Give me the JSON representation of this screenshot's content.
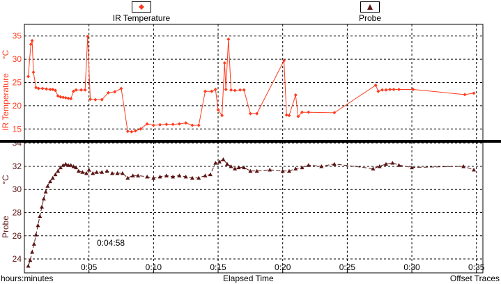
{
  "legend": [
    {
      "label": "IR Temperature",
      "color": "#ff3b1f",
      "marker": "diamond"
    },
    {
      "label": "Probe",
      "color": "#5a1414",
      "marker": "triangle"
    }
  ],
  "footer": {
    "left_label": "hours:minutes",
    "center_label": "Elapsed Time",
    "right_label": "Offset Traces"
  },
  "cursor_label": "0:04:58",
  "chart_data": [
    {
      "type": "line",
      "title": "",
      "xlabel": "Elapsed Time",
      "x_tick_labels": [
        "0:05",
        "0:10",
        "0:15",
        "0:20",
        "0:25",
        "0:30",
        "0:35"
      ],
      "x_ticks_minutes": [
        5,
        10,
        15,
        20,
        25,
        30,
        35
      ],
      "xlim": [
        0,
        35.5
      ],
      "ylabel": "IR Temperature",
      "yunit": "°C",
      "ylim": [
        12.5,
        37.5
      ],
      "y_ticks": [
        15,
        20,
        25,
        30,
        35
      ],
      "grid": true,
      "legend_position": "top",
      "series": [
        {
          "name": "IR Temperature",
          "color": "#ff3b1f",
          "marker": "diamond",
          "x": [
            0.3,
            0.5,
            0.6,
            0.7,
            0.9,
            1.1,
            1.4,
            1.7,
            2.0,
            2.2,
            2.4,
            2.6,
            2.8,
            3.0,
            3.2,
            3.4,
            3.6,
            3.8,
            4.0,
            4.4,
            4.7,
            4.9,
            5.1,
            5.5,
            6.0,
            6.5,
            7.0,
            7.5,
            8.0,
            8.3,
            8.6,
            9.0,
            9.5,
            10.0,
            10.5,
            11.0,
            11.5,
            12.0,
            12.5,
            13.0,
            13.5,
            14.0,
            14.5,
            14.8,
            15.0,
            15.3,
            15.5,
            15.6,
            15.8,
            16.0,
            16.3,
            16.7,
            17.0,
            17.5,
            18.0,
            20.1,
            20.3,
            20.5,
            21.0,
            21.2,
            21.5,
            22.0,
            24.0,
            27.2,
            27.4,
            27.7,
            28.0,
            28.3,
            28.6,
            29.0,
            30.1,
            34.1,
            34.8
          ],
          "y": [
            26.3,
            33.2,
            34.0,
            27.2,
            23.9,
            23.7,
            23.7,
            23.6,
            23.5,
            23.5,
            23.3,
            22.1,
            21.9,
            21.8,
            21.7,
            21.6,
            21.5,
            23.1,
            23.4,
            23.4,
            23.4,
            34.9,
            21.4,
            21.3,
            21.3,
            22.8,
            23.0,
            23.7,
            14.5,
            14.4,
            14.6,
            15.0,
            16.1,
            15.8,
            15.9,
            16.0,
            16.0,
            16.1,
            16.3,
            15.8,
            15.8,
            23.1,
            23.1,
            23.5,
            19.1,
            17.9,
            29.2,
            23.5,
            34.3,
            23.4,
            23.3,
            23.4,
            23.4,
            18.3,
            18.3,
            29.7,
            18.0,
            17.9,
            22.3,
            17.7,
            18.6,
            18.6,
            18.5,
            24.4,
            23.1,
            23.4,
            23.4,
            23.5,
            23.5,
            23.5,
            23.5,
            22.4,
            22.7
          ]
        }
      ]
    },
    {
      "type": "line",
      "title": "",
      "xlabel": "Elapsed Time",
      "xlim": [
        0,
        35.5
      ],
      "ylabel": "Probe",
      "yunit": "°C",
      "ylim": [
        22.8,
        34.1
      ],
      "y_ticks": [
        24,
        26,
        28,
        30,
        32,
        34
      ],
      "grid": true,
      "series": [
        {
          "name": "Probe",
          "color": "#5a1414",
          "marker": "triangle",
          "x": [
            0.3,
            0.45,
            0.6,
            0.75,
            0.9,
            1.05,
            1.2,
            1.35,
            1.5,
            1.65,
            1.8,
            2.0,
            2.2,
            2.4,
            2.6,
            2.8,
            3.0,
            3.2,
            3.4,
            3.6,
            3.8,
            4.0,
            4.2,
            4.5,
            4.8,
            5.0,
            5.3,
            5.6,
            6.0,
            6.4,
            6.8,
            7.2,
            7.6,
            8.0,
            8.4,
            8.8,
            9.5,
            10.0,
            10.5,
            11.0,
            11.5,
            12.0,
            12.5,
            13.0,
            13.5,
            14.0,
            14.4,
            14.8,
            15.1,
            15.4,
            15.7,
            16.0,
            16.3,
            16.6,
            17.0,
            17.5,
            18.0,
            19.0,
            20.0,
            20.5,
            21.0,
            21.5,
            22.0,
            23.0,
            24.0,
            27.0,
            27.5,
            28.0,
            28.5,
            29.0,
            30.0,
            34.0,
            34.8
          ],
          "y": [
            23.4,
            23.9,
            24.6,
            25.3,
            26.1,
            26.9,
            27.7,
            28.5,
            29.2,
            29.8,
            30.3,
            30.7,
            31.0,
            31.3,
            31.6,
            31.9,
            32.1,
            32.2,
            32.1,
            32.1,
            32.0,
            31.9,
            31.6,
            31.5,
            31.4,
            31.7,
            31.4,
            31.5,
            31.5,
            31.6,
            31.4,
            31.4,
            31.4,
            31.0,
            31.2,
            31.2,
            31.1,
            31.0,
            31.1,
            31.2,
            31.1,
            31.2,
            31.1,
            31.0,
            31.0,
            31.2,
            31.3,
            32.3,
            32.4,
            32.6,
            32.2,
            32.0,
            31.8,
            31.9,
            31.9,
            31.6,
            31.6,
            31.7,
            31.6,
            31.6,
            31.8,
            31.9,
            32.1,
            32.0,
            32.2,
            31.8,
            32.0,
            32.2,
            32.3,
            32.1,
            31.9,
            32.0,
            31.7
          ]
        }
      ]
    }
  ]
}
